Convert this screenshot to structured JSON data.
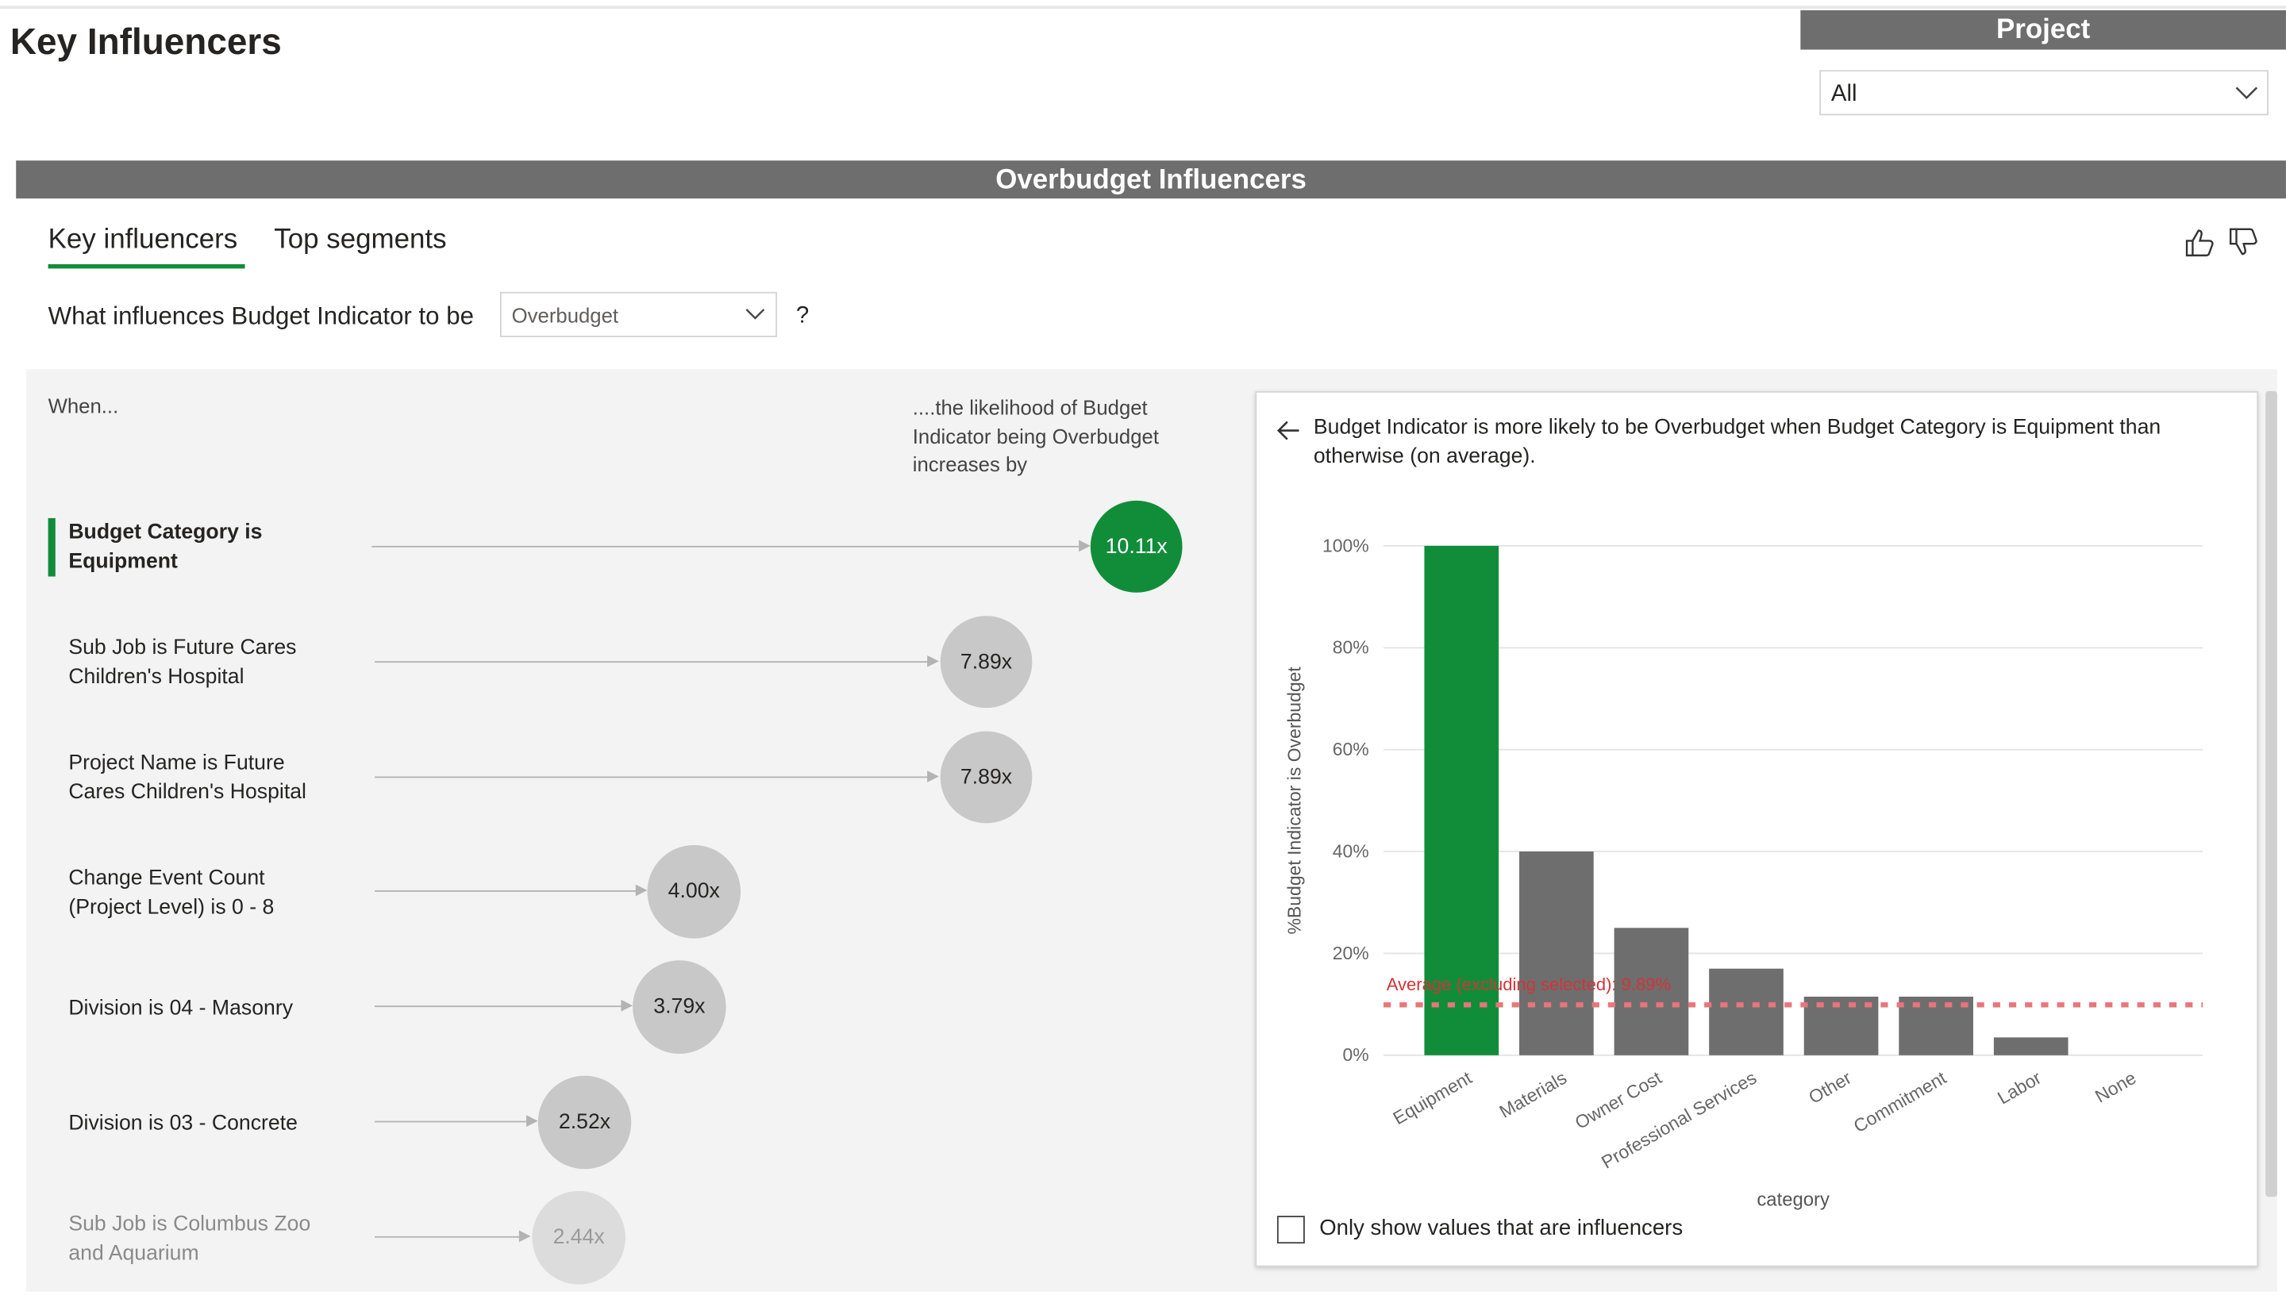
{
  "page_title": "Key Influencers",
  "slicer": {
    "title": "Project",
    "value": "All"
  },
  "visual": {
    "title": "Overbudget Influencers",
    "tabs": [
      {
        "label": "Key influencers",
        "active": true
      },
      {
        "label": "Top segments",
        "active": false
      }
    ],
    "question_prefix": "What influences Budget Indicator to be",
    "question_value": "Overbudget",
    "question_suffix": "?",
    "when_label": "When...",
    "likelihood_label": "....the likelihood of Budget Indicator being Overbudget increases by",
    "influencers": [
      {
        "label": "Budget Category is Equipment",
        "value": "10.11x",
        "selected": true
      },
      {
        "label": "Sub Job is Future Cares Children's Hospital",
        "value": "7.89x"
      },
      {
        "label": "Project Name is Future Cares Children's Hospital",
        "value": "7.89x"
      },
      {
        "label": "Change Event Count (Project Level) is 0 - 8",
        "value": "4.00x"
      },
      {
        "label": "Division is 04 - Masonry",
        "value": "3.79x"
      },
      {
        "label": "Division is 03 - Concrete",
        "value": "2.52x"
      },
      {
        "label": "Sub Job is Columbus Zoo and Aquarium",
        "value": "2.44x"
      }
    ],
    "detail": {
      "description": "Budget Indicator is more likely to be Overbudget when Budget Category is Equipment than otherwise (on average).",
      "checkbox_label": "Only show values that are influencers",
      "checkbox_checked": false
    }
  },
  "icons": [
    "thumbs-up-icon",
    "thumbs-down-icon",
    "back-arrow-icon",
    "chevron-down-icon"
  ],
  "colors": {
    "accent": "#118d3a",
    "bar": "#6e6e6e",
    "average_line": "#e8767a",
    "header": "#6e6e6e"
  },
  "chart_data": {
    "type": "bar",
    "categories": [
      "Equipment",
      "Materials",
      "Owner Cost",
      "Professional Services",
      "Other",
      "Commitment",
      "Labor",
      "None"
    ],
    "values": [
      100,
      40,
      25,
      17,
      11.5,
      11.5,
      3.5,
      0
    ],
    "highlight_index": 0,
    "xlabel": "category",
    "ylabel": "%Budget Indicator is Overbudget",
    "ylim": [
      0,
      100
    ],
    "yticks": [
      "0%",
      "20%",
      "40%",
      "60%",
      "80%",
      "100%"
    ],
    "average_line": {
      "value": 9.89,
      "label": "Average (excluding selected): 9.89%"
    },
    "grid": true
  }
}
